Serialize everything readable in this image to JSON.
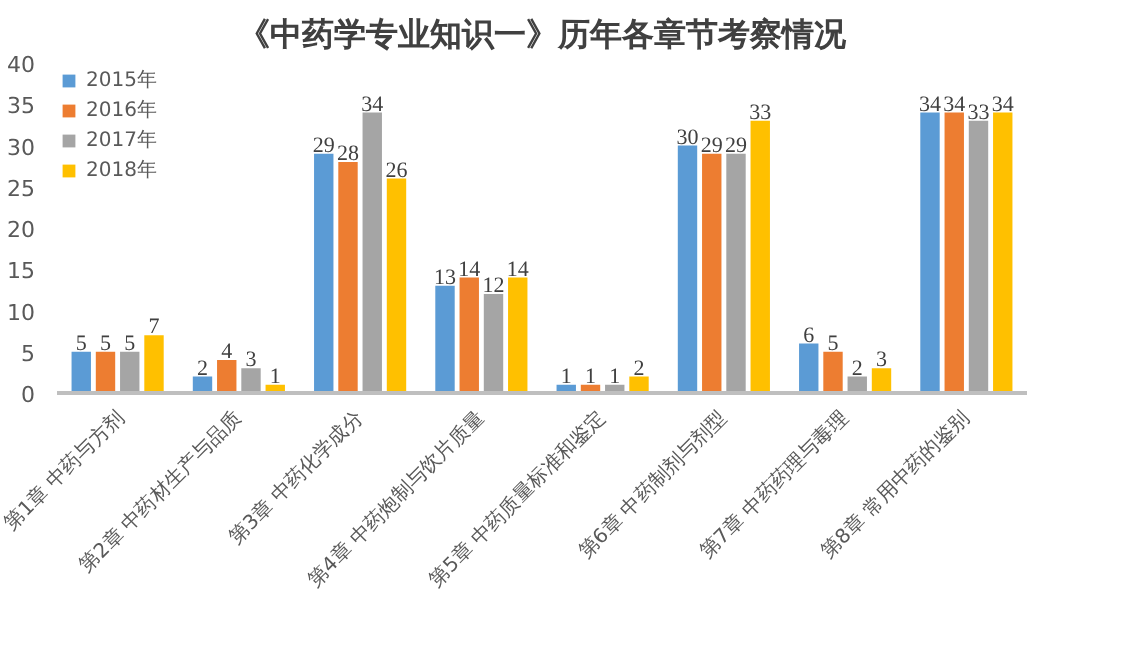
{
  "chart_data": {
    "type": "bar",
    "title": "《中药学专业知识一》历年各章节考察情况",
    "categories": [
      "第1章 中药与方剂",
      "第2章 中药材生产与品质",
      "第3章 中药化学成分",
      "第4章 中药炮制与饮片质量",
      "第5章 中药质量标准和鉴定",
      "第6章 中药制剂与剂型",
      "第7章 中药药理与毒理",
      "第8章 常用中药的鉴别"
    ],
    "series": [
      {
        "name": "2015年",
        "color": "#5b9bd5",
        "values": [
          5,
          2,
          29,
          13,
          1,
          30,
          6,
          34
        ]
      },
      {
        "name": "2016年",
        "color": "#ed7d31",
        "values": [
          5,
          4,
          28,
          14,
          1,
          29,
          5,
          34
        ]
      },
      {
        "name": "2017年",
        "color": "#a5a5a5",
        "values": [
          5,
          3,
          34,
          12,
          1,
          29,
          2,
          33
        ]
      },
      {
        "name": "2018年",
        "color": "#ffc000",
        "values": [
          7,
          1,
          26,
          14,
          2,
          33,
          3,
          34
        ]
      }
    ],
    "ylim": [
      0,
      40
    ],
    "yticks": [
      0,
      5,
      10,
      15,
      20,
      25,
      30,
      35,
      40
    ],
    "data_labels": true,
    "grid": false,
    "legend": "top left"
  }
}
